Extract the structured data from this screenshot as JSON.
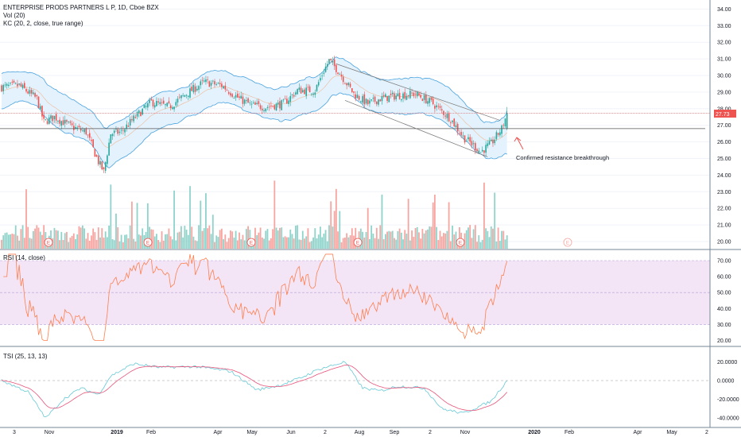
{
  "header": {
    "symbol_line": "ENTERPRISE PRODS PARTNERS L P, 1D, Cboe BZX",
    "vol_label": "Vol (20)",
    "kc_label": "KC (20, 2, close, true range)"
  },
  "rsi_panel": {
    "label": "RSI (14, close)"
  },
  "tsi_panel": {
    "label": "TSI (25, 13, 13)"
  },
  "annotation": {
    "text": "Confirmed resistance breakthrough"
  },
  "last_price_tag": "27.73",
  "earnings_marker": "E",
  "chart_data": [
    {
      "type": "candlestick",
      "name": "price",
      "y_axis_ticks": [
        "34.00",
        "33.00",
        "32.00",
        "31.00",
        "30.00",
        "29.00",
        "28.00",
        "27.00",
        "26.00",
        "25.00",
        "24.00",
        "23.00",
        "22.00",
        "21.00",
        "20.00"
      ],
      "ylim": [
        19.5,
        34.5
      ],
      "last_price": 27.73,
      "close_anchors": [
        [
          0,
          29.3
        ],
        [
          10,
          29.4
        ],
        [
          20,
          28.6
        ],
        [
          24,
          27.2
        ],
        [
          30,
          27.5
        ],
        [
          40,
          26.9
        ],
        [
          48,
          26.6
        ],
        [
          55,
          24.8
        ],
        [
          58,
          24.2
        ],
        [
          62,
          26.5
        ],
        [
          68,
          26.6
        ],
        [
          75,
          27.4
        ],
        [
          85,
          28.4
        ],
        [
          95,
          28.1
        ],
        [
          105,
          28.9
        ],
        [
          115,
          29.6
        ],
        [
          125,
          29.4
        ],
        [
          135,
          28.6
        ],
        [
          142,
          28.2
        ],
        [
          150,
          28.1
        ],
        [
          160,
          28.3
        ],
        [
          168,
          29.1
        ],
        [
          178,
          29.1
        ],
        [
          183,
          30.3
        ],
        [
          186,
          30.9
        ],
        [
          191,
          30.3
        ],
        [
          200,
          28.9
        ],
        [
          208,
          28.3
        ],
        [
          215,
          28.6
        ],
        [
          225,
          28.8
        ],
        [
          235,
          28.9
        ],
        [
          245,
          28.3
        ],
        [
          255,
          27.4
        ],
        [
          262,
          26.3
        ],
        [
          268,
          25.8
        ],
        [
          272,
          25.4
        ],
        [
          278,
          25.9
        ],
        [
          284,
          26.8
        ],
        [
          287,
          27.7
        ]
      ],
      "keltner": "KC (20, 2, close, true range)",
      "horizontal_line": 26.8,
      "trendlines": [
        {
          "from": {
            "x": 190,
            "y": 30.7
          },
          "to": {
            "x": 283,
            "y": 27.3
          }
        },
        {
          "from": {
            "x": 195,
            "y": 28.5
          },
          "to": {
            "x": 276,
            "y": 25.1
          }
        }
      ]
    },
    {
      "type": "bar",
      "name": "Vol (20)",
      "y_axis_ticks": [],
      "series_colors": {
        "up": "#8fd3cb",
        "down": "#f7a5a0"
      }
    },
    {
      "type": "line",
      "name": "RSI (14, close)",
      "y_axis_ticks": [
        "70.00",
        "60.00",
        "50.00",
        "40.00",
        "30.00",
        "20.00"
      ],
      "ylim": [
        16,
        74
      ],
      "band": [
        30,
        70
      ],
      "color": "#ff7f50"
    },
    {
      "type": "line",
      "name": "TSI (25, 13, 13)",
      "y_axis_ticks": [
        "20.0000",
        "0.0000",
        "-20.0000",
        "-40.0000"
      ],
      "ylim": [
        -45,
        27
      ],
      "series": [
        {
          "name": "TSI",
          "color": "#67c9d6"
        },
        {
          "name": "Signal",
          "color": "#e8537a"
        }
      ],
      "tsi_anchors": [
        [
          0,
          0
        ],
        [
          15,
          -12
        ],
        [
          25,
          -40
        ],
        [
          35,
          -20
        ],
        [
          45,
          -8
        ],
        [
          55,
          -15
        ],
        [
          62,
          5
        ],
        [
          75,
          18
        ],
        [
          90,
          14
        ],
        [
          110,
          15
        ],
        [
          130,
          10
        ],
        [
          145,
          -10
        ],
        [
          158,
          -5
        ],
        [
          170,
          3
        ],
        [
          180,
          12
        ],
        [
          195,
          20
        ],
        [
          205,
          -8
        ],
        [
          215,
          -11
        ],
        [
          225,
          -6
        ],
        [
          240,
          -8
        ],
        [
          250,
          -30
        ],
        [
          262,
          -35
        ],
        [
          278,
          -22
        ],
        [
          287,
          0
        ]
      ]
    }
  ],
  "x_axis": {
    "labels": [
      "3",
      "Nov",
      "2019",
      "Feb",
      "Apr",
      "May",
      "Jun",
      "2",
      "Aug",
      "Sep",
      "2",
      "Nov",
      "2020",
      "Feb",
      "Apr",
      "May",
      "2"
    ],
    "bold": [
      "2019",
      "2020"
    ]
  },
  "colors": {
    "up": "#26a69a",
    "down": "#ef5350",
    "kc_fill": "#e3f2fd",
    "kc_line": "#4aa3df",
    "rsi_band": "#f3e5f5",
    "grid": "#f0f3fa",
    "separator": "#758696"
  }
}
